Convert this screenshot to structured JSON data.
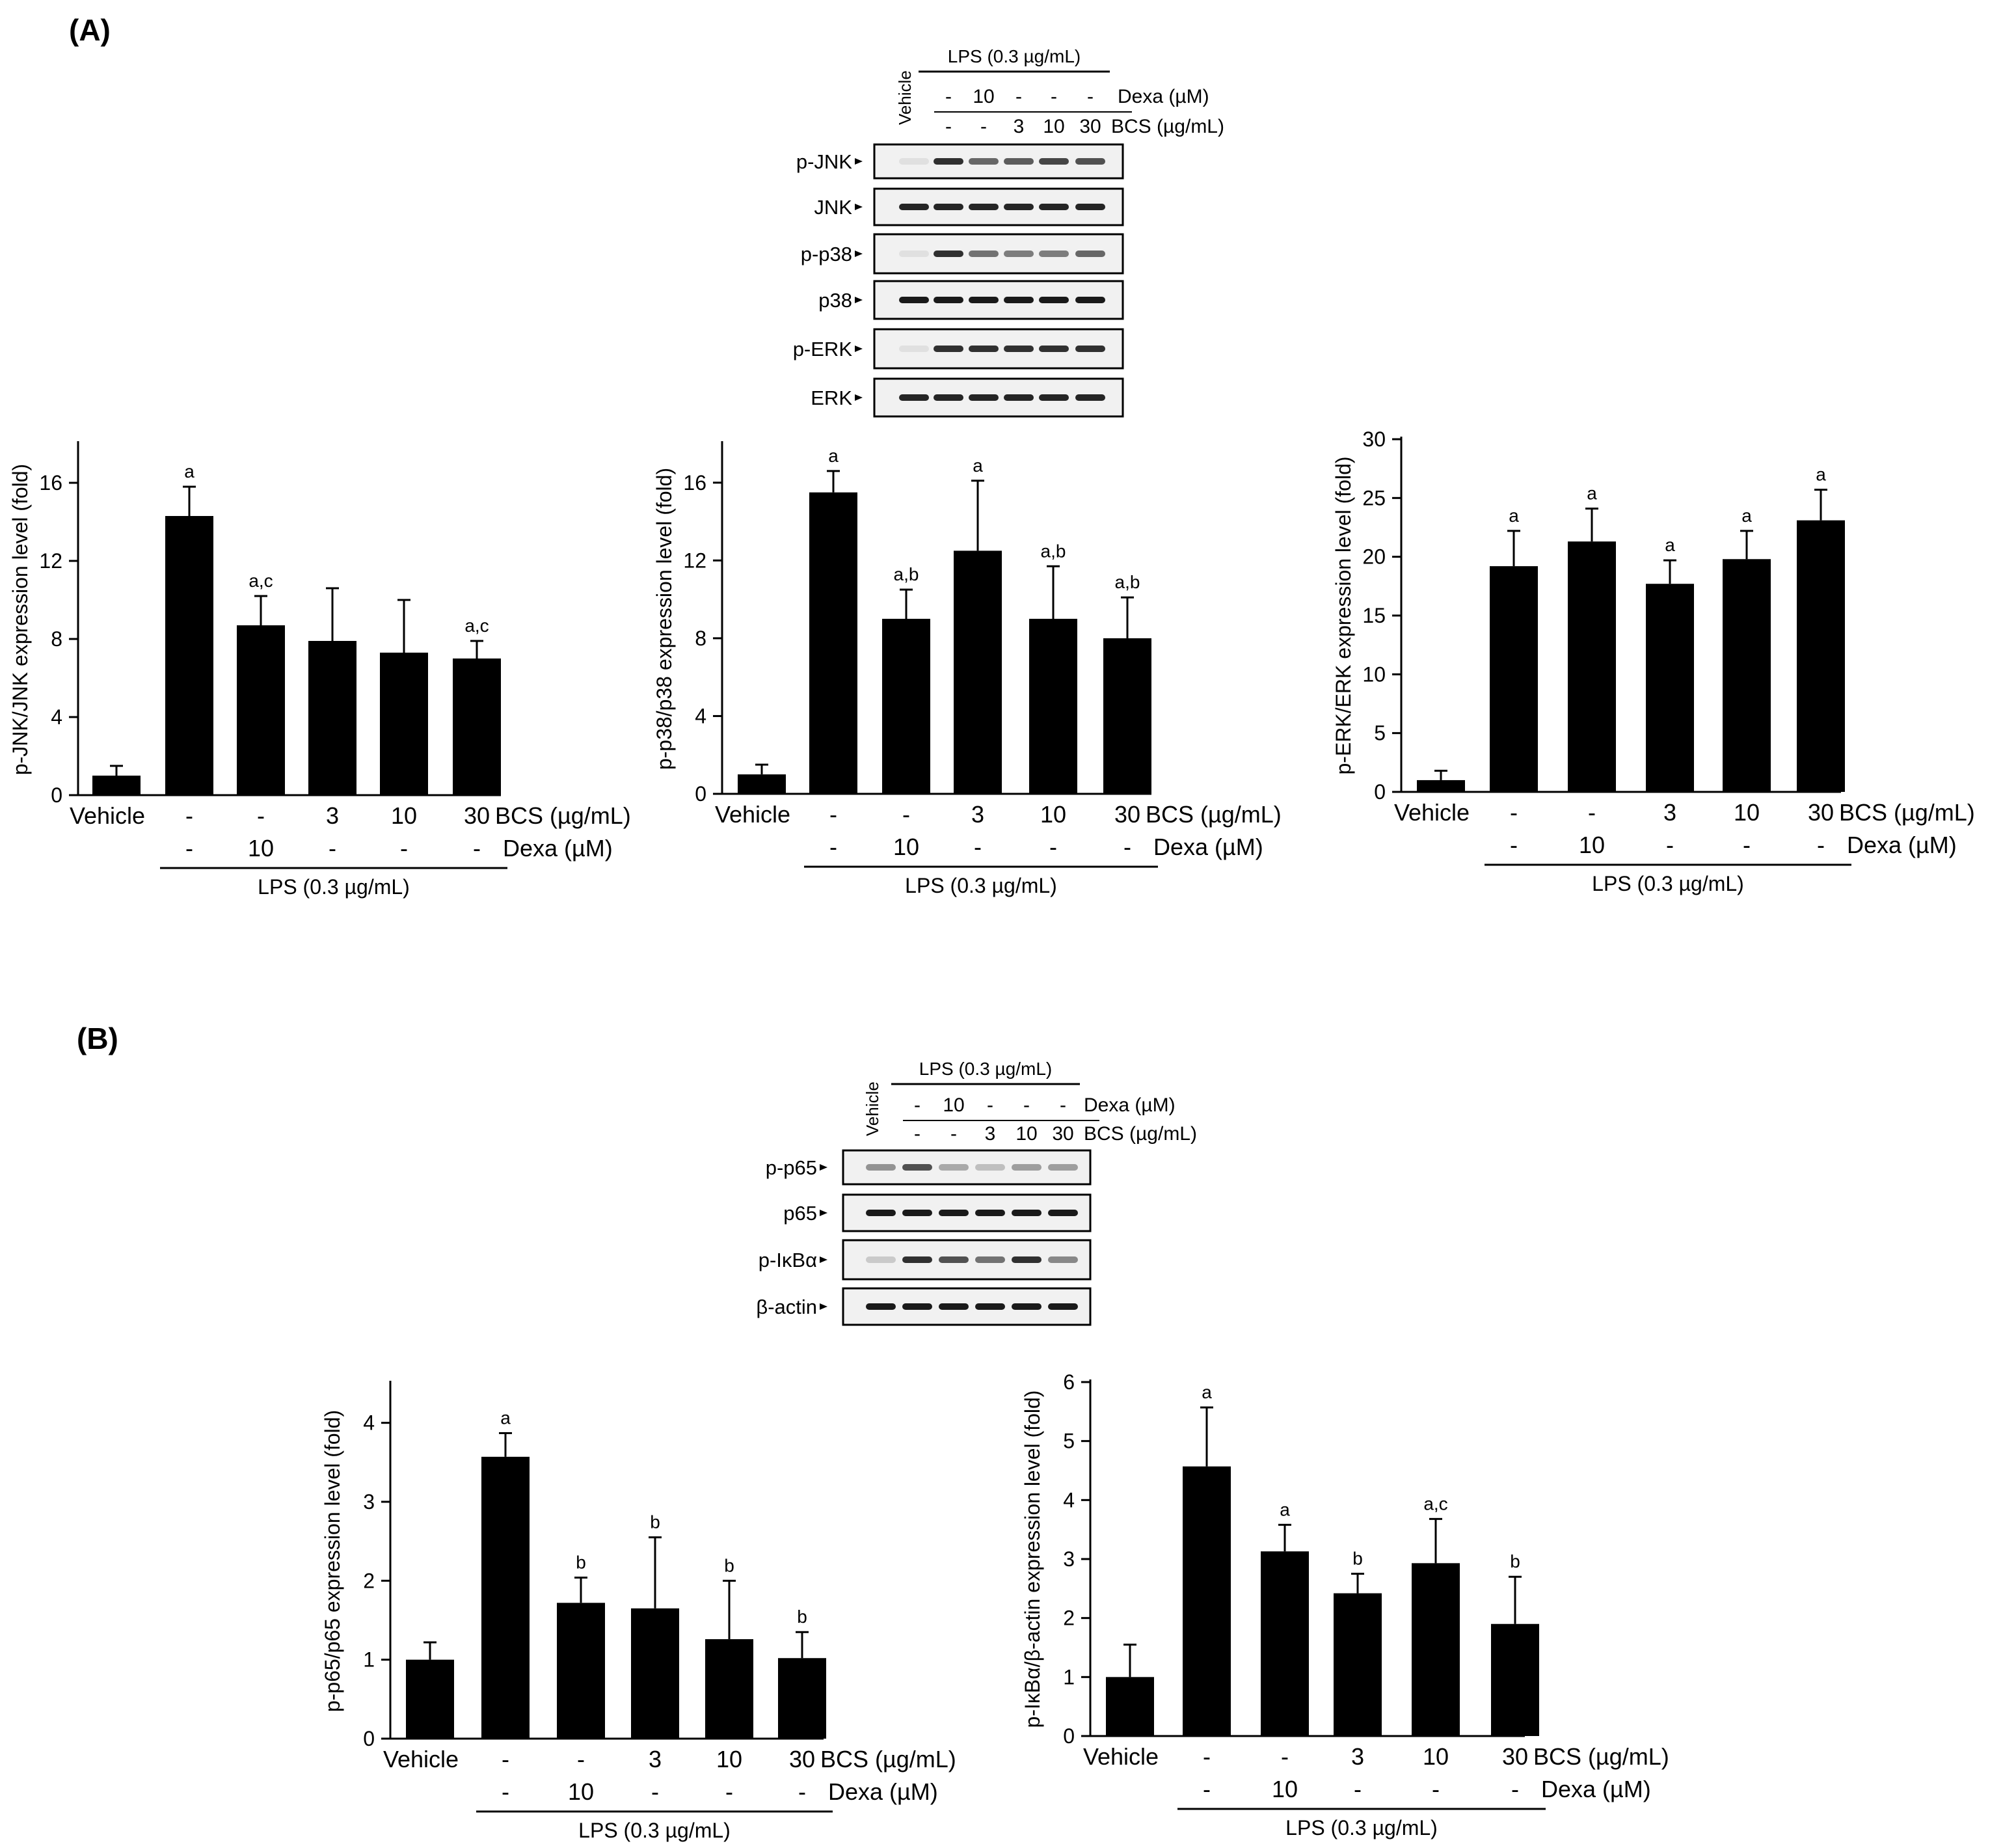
{
  "panels": [
    {
      "label": "(A)",
      "blot": {
        "vehicle_label": "Vehicle",
        "lps_label": "LPS (0.3 µg/mL)",
        "dexa_row": {
          "cells": [
            "-",
            "10",
            "-",
            "-",
            "-"
          ],
          "label": "Dexa (µM)"
        },
        "bcs_row": {
          "cells": [
            "-",
            "-",
            "3",
            "10",
            "30"
          ],
          "label": "BCS (µg/mL)"
        },
        "rows": [
          {
            "name": "p-JNK",
            "bands": [
              0.05,
              0.85,
              0.6,
              0.65,
              0.75,
              0.7
            ]
          },
          {
            "name": "JNK",
            "bands": [
              0.9,
              0.9,
              0.9,
              0.9,
              0.9,
              0.9
            ]
          },
          {
            "name": "p-p38",
            "bands": [
              0.05,
              0.85,
              0.55,
              0.5,
              0.5,
              0.6
            ]
          },
          {
            "name": "p38",
            "bands": [
              0.95,
              0.95,
              0.95,
              0.95,
              0.95,
              0.95
            ]
          },
          {
            "name": "p-ERK",
            "bands": [
              0.05,
              0.85,
              0.85,
              0.85,
              0.85,
              0.85
            ]
          },
          {
            "name": "ERK",
            "bands": [
              0.9,
              0.9,
              0.9,
              0.9,
              0.9,
              0.9
            ]
          }
        ]
      }
    },
    {
      "label": "(B)",
      "blot": {
        "vehicle_label": "Vehicle",
        "lps_label": "LPS (0.3 µg/mL)",
        "dexa_row": {
          "cells": [
            "-",
            "10",
            "-",
            "-",
            "-"
          ],
          "label": "Dexa (µM)"
        },
        "bcs_row": {
          "cells": [
            "-",
            "-",
            "3",
            "10",
            "30"
          ],
          "label": "BCS (µg/mL)"
        },
        "rows": [
          {
            "name": "p-p65",
            "bands": [
              0.4,
              0.7,
              0.3,
              0.2,
              0.35,
              0.35
            ]
          },
          {
            "name": "p65",
            "bands": [
              0.95,
              0.95,
              0.95,
              0.95,
              0.95,
              0.95
            ]
          },
          {
            "name": "p-IκBα",
            "bands": [
              0.15,
              0.85,
              0.7,
              0.55,
              0.85,
              0.45
            ]
          },
          {
            "name": "β-actin",
            "bands": [
              0.95,
              0.95,
              0.95,
              0.95,
              0.95,
              0.95
            ]
          }
        ]
      }
    }
  ],
  "chart_data": [
    {
      "type": "bar",
      "ylabel": "p-JNK/JNK expression level (fold)",
      "ylim": [
        0,
        18
      ],
      "yticks": [
        0,
        4,
        8,
        12,
        16
      ],
      "categories": [
        "Vehicle",
        "-",
        "-",
        "3",
        "10",
        "30"
      ],
      "bcs_label": "BCS (µg/mL)",
      "dexa_row": [
        "-",
        "10",
        "-",
        "-",
        "-"
      ],
      "dexa_label": "Dexa (µM)",
      "lps_label": "LPS (0.3 µg/mL)",
      "values": [
        1.0,
        14.3,
        8.7,
        7.9,
        7.3,
        7.0
      ],
      "errors": [
        0.5,
        1.5,
        1.5,
        2.7,
        2.7,
        0.9
      ],
      "annotations": [
        "",
        "a",
        "a,c",
        "",
        "",
        "a,c"
      ]
    },
    {
      "type": "bar",
      "ylabel": "p-p38/p38 expression level (fold)",
      "ylim": [
        0,
        18
      ],
      "yticks": [
        0,
        4,
        8,
        12,
        16
      ],
      "categories": [
        "Vehicle",
        "-",
        "-",
        "3",
        "10",
        "30"
      ],
      "bcs_label": "BCS (µg/mL)",
      "dexa_row": [
        "-",
        "10",
        "-",
        "-",
        "-"
      ],
      "dexa_label": "Dexa (µM)",
      "lps_label": "LPS (0.3 µg/mL)",
      "values": [
        1.0,
        15.5,
        9.0,
        12.5,
        9.0,
        8.0
      ],
      "errors": [
        0.5,
        1.1,
        1.5,
        3.6,
        2.7,
        2.1
      ],
      "annotations": [
        "",
        "a",
        "a,b",
        "a",
        "a,b",
        "a,b"
      ]
    },
    {
      "type": "bar",
      "ylabel": "p-ERK/ERK expression level (fold)",
      "ylim": [
        0,
        30
      ],
      "yticks": [
        0,
        5,
        10,
        15,
        20,
        25,
        30
      ],
      "categories": [
        "Vehicle",
        "-",
        "-",
        "3",
        "10",
        "30"
      ],
      "bcs_label": "BCS (µg/mL)",
      "dexa_row": [
        "-",
        "10",
        "-",
        "-",
        "-"
      ],
      "dexa_label": "Dexa (µM)",
      "lps_label": "LPS (0.3 µg/mL)",
      "values": [
        1.0,
        19.2,
        21.3,
        17.7,
        19.8,
        23.1
      ],
      "errors": [
        0.8,
        3.0,
        2.8,
        2.0,
        2.4,
        2.6
      ],
      "annotations": [
        "",
        "a",
        "a",
        "a",
        "a",
        "a"
      ]
    },
    {
      "type": "bar",
      "ylabel": "p-p65/p65 expression level (fold)",
      "ylim": [
        0,
        4.5
      ],
      "yticks": [
        0,
        1,
        2,
        3,
        4
      ],
      "categories": [
        "Vehicle",
        "-",
        "-",
        "3",
        "10",
        "30"
      ],
      "bcs_label": "BCS (µg/mL)",
      "dexa_row": [
        "-",
        "10",
        "-",
        "-",
        "-"
      ],
      "dexa_label": "Dexa (µM)",
      "lps_label": "LPS (0.3 µg/mL)",
      "values": [
        1.0,
        3.57,
        1.72,
        1.65,
        1.26,
        1.02
      ],
      "errors": [
        0.22,
        0.3,
        0.32,
        0.9,
        0.74,
        0.33
      ],
      "annotations": [
        "",
        "a",
        "b",
        "b",
        "b",
        "b"
      ]
    },
    {
      "type": "bar",
      "ylabel": "p-IκBα/β-actin expression level (fold)",
      "ylim": [
        0,
        6
      ],
      "yticks": [
        0,
        1,
        2,
        3,
        4,
        5,
        6
      ],
      "categories": [
        "Vehicle",
        "-",
        "-",
        "3",
        "10",
        "30"
      ],
      "bcs_label": "BCS (µg/mL)",
      "dexa_row": [
        "-",
        "10",
        "-",
        "-",
        "-"
      ],
      "dexa_label": "Dexa (µM)",
      "lps_label": "LPS (0.3 µg/mL)",
      "values": [
        1.0,
        4.57,
        3.13,
        2.42,
        2.93,
        1.9
      ],
      "errors": [
        0.55,
        1.0,
        0.45,
        0.33,
        0.75,
        0.8
      ],
      "annotations": [
        "",
        "a",
        "a",
        "b",
        "a,c",
        "b"
      ]
    }
  ]
}
